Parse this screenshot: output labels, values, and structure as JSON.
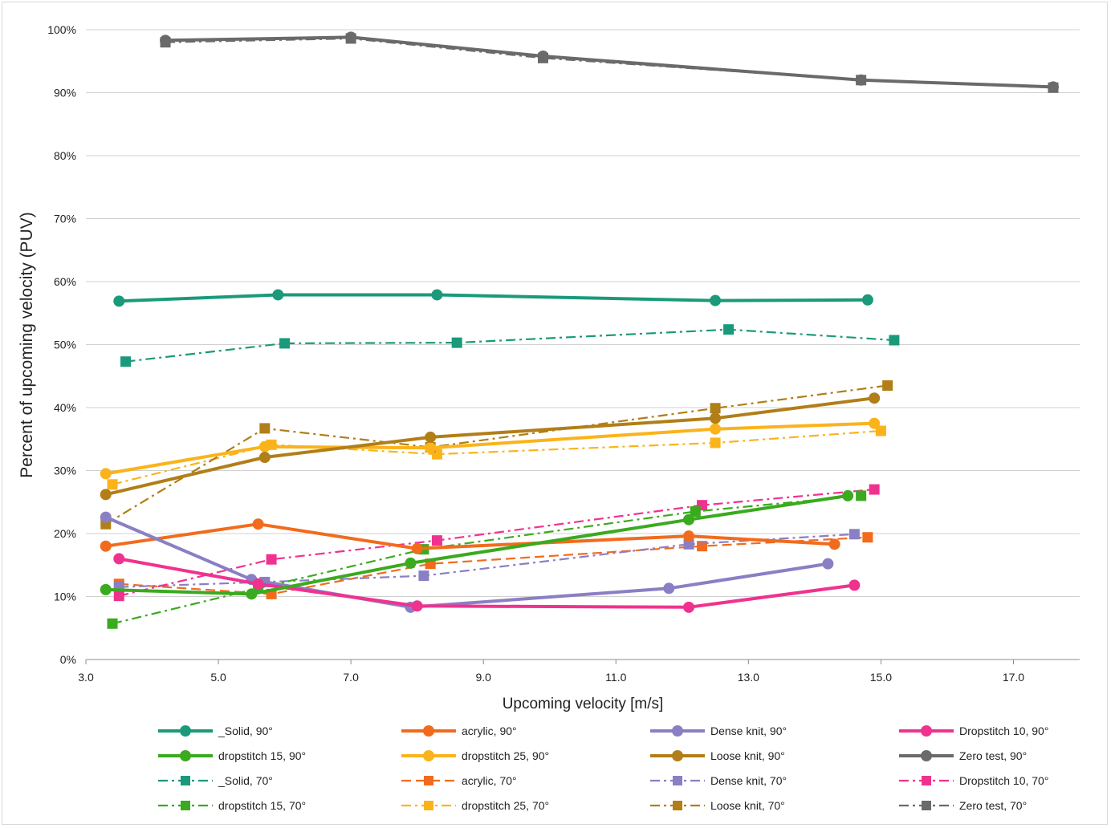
{
  "chart_data": {
    "type": "line",
    "title": "",
    "xlabel": "Upcoming velocity [m/s]",
    "ylabel": "Percent of upcoming velocity  (PUV)",
    "xlim": [
      3.0,
      18.0
    ],
    "ylim": [
      0,
      100
    ],
    "x_ticks": [
      "3.0",
      "5.0",
      "7.0",
      "9.0",
      "11.0",
      "13.0",
      "15.0",
      "17.0"
    ],
    "y_ticks": [
      "0%",
      "10%",
      "20%",
      "30%",
      "40%",
      "50%",
      "60%",
      "70%",
      "80%",
      "90%",
      "100%"
    ],
    "grid": "horizontal",
    "legend_position": "bottom",
    "series": [
      {
        "name": "_Solid, 90°",
        "color": "#1a9a7a",
        "style": "solid",
        "marker": "circle",
        "points": [
          [
            3.5,
            56.9
          ],
          [
            5.9,
            57.9
          ],
          [
            8.3,
            57.9
          ],
          [
            12.5,
            57.0
          ],
          [
            14.8,
            57.1
          ]
        ]
      },
      {
        "name": "acrylic, 90°",
        "color": "#f26b1d",
        "style": "solid",
        "marker": "circle",
        "points": [
          [
            3.3,
            18.0
          ],
          [
            5.6,
            21.5
          ],
          [
            8.0,
            17.6
          ],
          [
            12.1,
            19.6
          ],
          [
            14.3,
            18.3
          ]
        ]
      },
      {
        "name": "Dense knit, 90°",
        "color": "#8a7fc4",
        "style": "solid",
        "marker": "circle",
        "points": [
          [
            3.3,
            22.6
          ],
          [
            5.5,
            12.7
          ],
          [
            7.9,
            8.3
          ],
          [
            11.8,
            11.3
          ],
          [
            14.2,
            15.2
          ]
        ]
      },
      {
        "name": "Dropstitch 10, 90°",
        "color": "#f0328f",
        "style": "solid",
        "marker": "circle",
        "points": [
          [
            3.5,
            16.0
          ],
          [
            5.6,
            12.0
          ],
          [
            8.0,
            8.5
          ],
          [
            12.1,
            8.3
          ],
          [
            14.6,
            11.8
          ]
        ]
      },
      {
        "name": "dropstitch 15, 90°",
        "color": "#3aaa1e",
        "style": "solid",
        "marker": "circle",
        "points": [
          [
            3.3,
            11.1
          ],
          [
            5.5,
            10.4
          ],
          [
            7.9,
            15.3
          ],
          [
            12.1,
            22.2
          ],
          [
            14.5,
            26.0
          ]
        ]
      },
      {
        "name": "dropstitch 25, 90°",
        "color": "#fbb31b",
        "style": "solid",
        "marker": "circle",
        "points": [
          [
            3.3,
            29.5
          ],
          [
            5.7,
            33.8
          ],
          [
            8.2,
            33.6
          ],
          [
            12.5,
            36.6
          ],
          [
            14.9,
            37.5
          ]
        ]
      },
      {
        "name": "Loose knit, 90°",
        "color": "#b17e17",
        "style": "solid",
        "marker": "circle",
        "points": [
          [
            3.3,
            26.2
          ],
          [
            5.7,
            32.1
          ],
          [
            8.2,
            35.3
          ],
          [
            12.5,
            38.3
          ],
          [
            14.9,
            41.5
          ]
        ]
      },
      {
        "name": "Zero test, 90°",
        "color": "#6a6a6a",
        "style": "solid",
        "marker": "circle",
        "points": [
          [
            4.2,
            98.3
          ],
          [
            7.0,
            98.8
          ],
          [
            9.9,
            95.8
          ],
          [
            14.7,
            92.0
          ],
          [
            17.6,
            90.9
          ]
        ]
      },
      {
        "name": "_Solid, 70°",
        "color": "#1a9a7a",
        "style": "dashdot",
        "marker": "square",
        "points": [
          [
            3.6,
            47.3
          ],
          [
            6.0,
            50.2
          ],
          [
            8.6,
            50.3
          ],
          [
            12.7,
            52.4
          ],
          [
            15.2,
            50.7
          ]
        ]
      },
      {
        "name": "acrylic, 70°",
        "color": "#f26b1d",
        "style": "dashed",
        "marker": "square",
        "points": [
          [
            3.5,
            12.0
          ],
          [
            5.8,
            10.4
          ],
          [
            8.2,
            15.2
          ],
          [
            12.3,
            18.0
          ],
          [
            14.8,
            19.4
          ]
        ]
      },
      {
        "name": "Dense knit, 70°",
        "color": "#8a7fc4",
        "style": "dashdot",
        "marker": "square",
        "points": [
          [
            3.5,
            11.5
          ],
          [
            5.7,
            12.3
          ],
          [
            8.1,
            13.3
          ],
          [
            12.1,
            18.3
          ],
          [
            14.6,
            19.9
          ]
        ]
      },
      {
        "name": "Dropstitch 10, 70°",
        "color": "#f0328f",
        "style": "dashdot",
        "marker": "square",
        "points": [
          [
            3.5,
            10.1
          ],
          [
            5.8,
            15.9
          ],
          [
            8.3,
            18.9
          ],
          [
            12.3,
            24.5
          ],
          [
            14.9,
            27.0
          ]
        ]
      },
      {
        "name": "dropstitch 15, 70°",
        "color": "#3aaa1e",
        "style": "dashdot",
        "marker": "square",
        "points": [
          [
            3.4,
            5.7
          ],
          [
            5.6,
            11.3
          ],
          [
            8.1,
            17.5
          ],
          [
            12.2,
            23.5
          ],
          [
            14.7,
            26.0
          ]
        ]
      },
      {
        "name": "dropstitch 25, 70°",
        "color": "#fbb31b",
        "style": "dashdot",
        "marker": "square",
        "points": [
          [
            3.4,
            27.8
          ],
          [
            5.8,
            34.1
          ],
          [
            8.3,
            32.6
          ],
          [
            12.5,
            34.4
          ],
          [
            15.0,
            36.3
          ]
        ]
      },
      {
        "name": "Loose knit, 70°",
        "color": "#b17e17",
        "style": "dashdot",
        "marker": "square",
        "points": [
          [
            3.3,
            21.5
          ],
          [
            5.7,
            36.7
          ],
          [
            8.2,
            33.7
          ],
          [
            12.5,
            39.9
          ],
          [
            15.1,
            43.5
          ]
        ]
      },
      {
        "name": "Zero test, 70°",
        "color": "#6a6a6a",
        "style": "dashdot",
        "marker": "square",
        "points": [
          [
            4.2,
            98.0
          ],
          [
            7.0,
            98.6
          ],
          [
            9.9,
            95.5
          ],
          [
            14.7,
            92.0
          ],
          [
            17.6,
            90.8
          ]
        ]
      }
    ]
  }
}
